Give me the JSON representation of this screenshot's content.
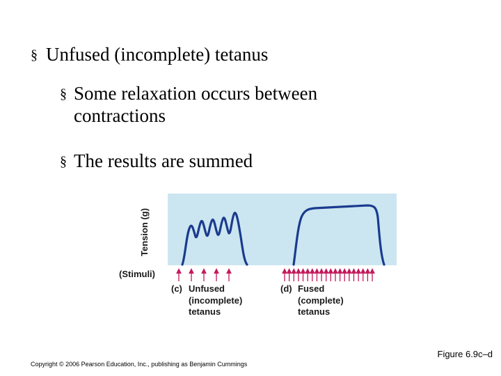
{
  "bullets": {
    "marker": "§",
    "main": "Unfused (incomplete) tetanus",
    "sub1_line1": "Some relaxation occurs between",
    "sub1_line2": "contractions",
    "sub2": "The results are summed"
  },
  "diagram": {
    "y_axis_label": "Tension (g)",
    "stimuli_label": "(Stimuli)",
    "panel_c": {
      "letter": "(c)",
      "line1": "Unfused",
      "line2": "(incomplete)",
      "line3": "tetanus",
      "stimulus_count": 5
    },
    "panel_d": {
      "letter": "(d)",
      "line1": "Fused",
      "line2": "(complete)",
      "line3": "tetanus",
      "stimulus_count": 20
    },
    "colors": {
      "plot_background": "#cbe6f0",
      "trace": "#1b3b8f",
      "stimulus_arrow": "#c2185b"
    }
  },
  "figure_ref": "Figure 6.9c–d",
  "copyright": "Copyright © 2006 Pearson Education, Inc., publishing as Benjamin Cummings"
}
